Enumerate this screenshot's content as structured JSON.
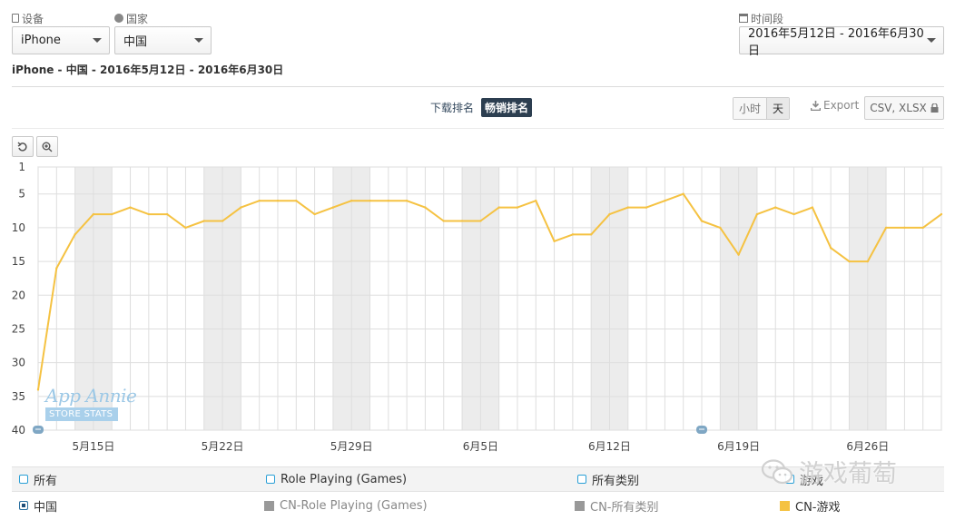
{
  "filters": {
    "device": {
      "label": "设备",
      "value": "iPhone"
    },
    "country": {
      "label": "国家",
      "value": "中国"
    },
    "period": {
      "label": "时间段",
      "value": "2016年5月12日 - 2016年6月30日"
    }
  },
  "subtitle": "iPhone - 中国 - 2016年5月12日 - 2016年6月30日",
  "rank_tabs": {
    "download": "下载排名",
    "grossing": "畅销排名"
  },
  "granularity": {
    "hour": "小时",
    "day": "天"
  },
  "export": {
    "label": "Export",
    "formats": "CSV, XLSX"
  },
  "chart_data": {
    "type": "line",
    "ylim": [
      1,
      40
    ],
    "y_reversed": true,
    "yticks": [
      1,
      5,
      10,
      15,
      20,
      25,
      30,
      35,
      40
    ],
    "x_start": "2016-05-12",
    "x_end": "2016-06-30",
    "xtick_labels": [
      "5月15日",
      "5月22日",
      "5月29日",
      "6月5日",
      "6月12日",
      "6月19日",
      "6月26日"
    ],
    "weekend_shading": true,
    "grid": true,
    "series": [
      {
        "name": "CN-游戏",
        "color": "#f5c242",
        "values": [
          34,
          16,
          11,
          8,
          8,
          7,
          8,
          8,
          10,
          9,
          9,
          7,
          6,
          6,
          6,
          8,
          7,
          6,
          6,
          6,
          6,
          7,
          9,
          9,
          9,
          7,
          7,
          6,
          12,
          11,
          11,
          8,
          7,
          7,
          6,
          5,
          9,
          10,
          14,
          8,
          7,
          8,
          7,
          13,
          15,
          15,
          10,
          10,
          10,
          8
        ]
      }
    ]
  },
  "legend": {
    "row1": [
      {
        "label": "所有"
      },
      {
        "label": "Role Playing (Games)"
      },
      {
        "label": "所有类别"
      },
      {
        "label": "游戏"
      }
    ],
    "row2": [
      {
        "label": "中国"
      },
      {
        "label": "CN-Role Playing (Games)",
        "color": "#999999"
      },
      {
        "label": "CN-所有类别",
        "color": "#999999"
      },
      {
        "label": "CN-游戏",
        "color": "#f5c242"
      }
    ]
  },
  "watermark": {
    "text": "游戏葡萄",
    "icon": "wechat-icon"
  },
  "appannie": {
    "brand": "App Annie",
    "tagline": "STORE STATS"
  }
}
